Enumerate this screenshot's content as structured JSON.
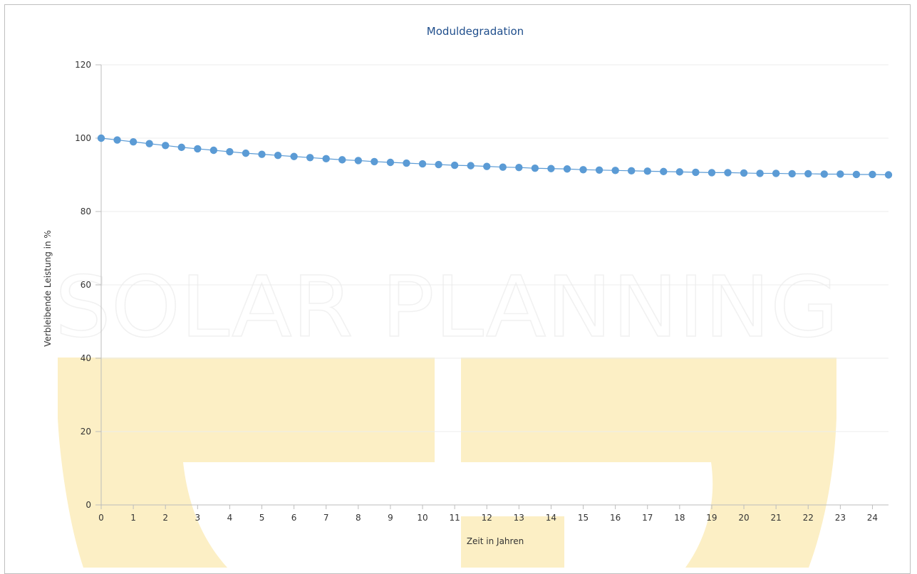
{
  "chart_data": {
    "type": "line",
    "title": "Moduldegradation",
    "xlabel": "Zeit in Jahren",
    "ylabel": "Verbleibende Leistung in %",
    "xlim": [
      0,
      24.5
    ],
    "ylim": [
      0,
      120
    ],
    "x_ticks": [
      "0",
      "1",
      "2",
      "3",
      "4",
      "5",
      "6",
      "7",
      "8",
      "9",
      "10",
      "11",
      "12",
      "13",
      "14",
      "15",
      "16",
      "17",
      "18",
      "19",
      "20",
      "21",
      "22",
      "23",
      "24"
    ],
    "y_ticks": [
      "0",
      "20",
      "40",
      "60",
      "80",
      "100",
      "120"
    ],
    "grid": "horizontal",
    "series": [
      {
        "x": [
          0,
          0.5,
          1,
          1.5,
          2,
          2.5,
          3,
          3.5,
          4,
          4.5,
          5,
          5.5,
          6,
          6.5,
          7,
          7.5,
          8,
          8.5,
          9,
          9.5,
          10,
          10.5,
          11,
          11.5,
          12,
          12.5,
          13,
          13.5,
          14,
          14.5,
          15,
          15.5,
          16,
          16.5,
          17,
          17.5,
          18,
          18.5,
          19,
          19.5,
          20,
          20.5,
          21,
          21.5,
          22,
          22.5,
          23,
          23.5,
          24,
          24.5
        ],
        "values": [
          100,
          99.5,
          99.0,
          98.5,
          98.0,
          97.5,
          97.1,
          96.7,
          96.3,
          95.9,
          95.6,
          95.3,
          95.0,
          94.7,
          94.4,
          94.1,
          93.9,
          93.6,
          93.4,
          93.2,
          93.0,
          92.8,
          92.6,
          92.5,
          92.3,
          92.1,
          92.0,
          91.8,
          91.7,
          91.6,
          91.4,
          91.3,
          91.2,
          91.1,
          91.0,
          90.9,
          90.8,
          90.7,
          90.6,
          90.6,
          90.5,
          90.4,
          90.4,
          90.3,
          90.3,
          90.2,
          90.2,
          90.1,
          90.1,
          90.0
        ]
      }
    ],
    "colors": {
      "series": "#5b9bd5",
      "grid": "#ececec",
      "axis": "#bcbcbc",
      "title": "#1f4e8c"
    }
  },
  "watermark": {
    "text": "SOLAR PLANNING",
    "fill_color": "#fcefc5"
  }
}
